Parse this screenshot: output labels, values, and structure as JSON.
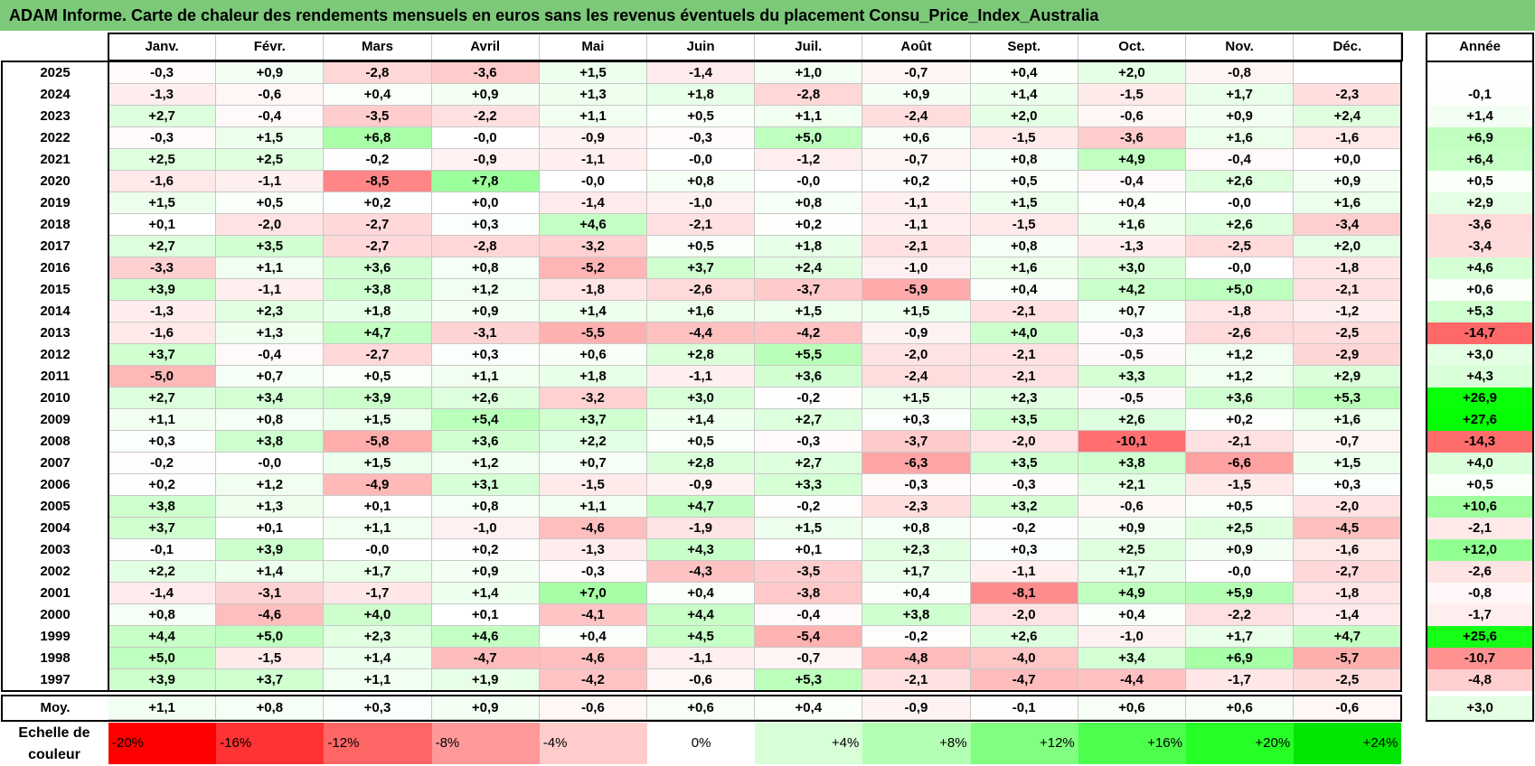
{
  "title": "ADAM Informe. Carte de chaleur des rendements mensuels en euros sans les revenus éventuels du placement Consu_Price_Index_Australia",
  "chart_data": {
    "type": "heatmap",
    "months": [
      "Janv.",
      "Févr.",
      "Mars",
      "Avril",
      "Mai",
      "Juin",
      "Juil.",
      "Août",
      "Sept.",
      "Oct.",
      "Nov.",
      "Déc."
    ],
    "year_header": "Année",
    "rows": [
      {
        "year": "2025",
        "values": [
          "-0,3",
          "+0,9",
          "-2,8",
          "-3,6",
          "+1,5",
          "-1,4",
          "+1,0",
          "-0,7",
          "+0,4",
          "+2,0",
          "-0,8",
          ""
        ],
        "annual": ""
      },
      {
        "year": "2024",
        "values": [
          "-1,3",
          "-0,6",
          "+0,4",
          "+0,9",
          "+1,3",
          "+1,8",
          "-2,8",
          "+0,9",
          "+1,4",
          "-1,5",
          "+1,7",
          "-2,3"
        ],
        "annual": "-0,1"
      },
      {
        "year": "2023",
        "values": [
          "+2,7",
          "-0,4",
          "-3,5",
          "-2,2",
          "+1,1",
          "+0,5",
          "+1,1",
          "-2,4",
          "+2,0",
          "-0,6",
          "+0,9",
          "+2,4"
        ],
        "annual": "+1,4"
      },
      {
        "year": "2022",
        "values": [
          "-0,3",
          "+1,5",
          "+6,8",
          "-0,0",
          "-0,9",
          "-0,3",
          "+5,0",
          "+0,6",
          "-1,5",
          "-3,6",
          "+1,6",
          "-1,6"
        ],
        "annual": "+6,9"
      },
      {
        "year": "2021",
        "values": [
          "+2,5",
          "+2,5",
          "-0,2",
          "-0,9",
          "-1,1",
          "-0,0",
          "-1,2",
          "-0,7",
          "+0,8",
          "+4,9",
          "-0,4",
          "+0,0"
        ],
        "annual": "+6,4"
      },
      {
        "year": "2020",
        "values": [
          "-1,6",
          "-1,1",
          "-8,5",
          "+7,8",
          "-0,0",
          "+0,8",
          "-0,0",
          "+0,2",
          "+0,5",
          "-0,4",
          "+2,6",
          "+0,9"
        ],
        "annual": "+0,5"
      },
      {
        "year": "2019",
        "values": [
          "+1,5",
          "+0,5",
          "+0,2",
          "+0,0",
          "-1,4",
          "-1,0",
          "+0,8",
          "-1,1",
          "+1,5",
          "+0,4",
          "-0,0",
          "+1,6"
        ],
        "annual": "+2,9"
      },
      {
        "year": "2018",
        "values": [
          "+0,1",
          "-2,0",
          "-2,7",
          "+0,3",
          "+4,6",
          "-2,1",
          "+0,2",
          "-1,1",
          "-1,5",
          "+1,6",
          "+2,6",
          "-3,4"
        ],
        "annual": "-3,6"
      },
      {
        "year": "2017",
        "values": [
          "+2,7",
          "+3,5",
          "-2,7",
          "-2,8",
          "-3,2",
          "+0,5",
          "+1,8",
          "-2,1",
          "+0,8",
          "-1,3",
          "-2,5",
          "+2,0"
        ],
        "annual": "-3,4"
      },
      {
        "year": "2016",
        "values": [
          "-3,3",
          "+1,1",
          "+3,6",
          "+0,8",
          "-5,2",
          "+3,7",
          "+2,4",
          "-1,0",
          "+1,6",
          "+3,0",
          "-0,0",
          "-1,8"
        ],
        "annual": "+4,6"
      },
      {
        "year": "2015",
        "values": [
          "+3,9",
          "-1,1",
          "+3,8",
          "+1,2",
          "-1,8",
          "-2,6",
          "-3,7",
          "-5,9",
          "+0,4",
          "+4,2",
          "+5,0",
          "-2,1"
        ],
        "annual": "+0,6"
      },
      {
        "year": "2014",
        "values": [
          "-1,3",
          "+2,3",
          "+1,8",
          "+0,9",
          "+1,4",
          "+1,6",
          "+1,5",
          "+1,5",
          "-2,1",
          "+0,7",
          "-1,8",
          "-1,2"
        ],
        "annual": "+5,3"
      },
      {
        "year": "2013",
        "values": [
          "-1,6",
          "+1,3",
          "+4,7",
          "-3,1",
          "-5,5",
          "-4,4",
          "-4,2",
          "-0,9",
          "+4,0",
          "-0,3",
          "-2,6",
          "-2,5"
        ],
        "annual": "-14,7"
      },
      {
        "year": "2012",
        "values": [
          "+3,7",
          "-0,4",
          "-2,7",
          "+0,3",
          "+0,6",
          "+2,8",
          "+5,5",
          "-2,0",
          "-2,1",
          "-0,5",
          "+1,2",
          "-2,9"
        ],
        "annual": "+3,0"
      },
      {
        "year": "2011",
        "values": [
          "-5,0",
          "+0,7",
          "+0,5",
          "+1,1",
          "+1,8",
          "-1,1",
          "+3,6",
          "-2,4",
          "-2,1",
          "+3,3",
          "+1,2",
          "+2,9"
        ],
        "annual": "+4,3"
      },
      {
        "year": "2010",
        "values": [
          "+2,7",
          "+3,4",
          "+3,9",
          "+2,6",
          "-3,2",
          "+3,0",
          "-0,2",
          "+1,5",
          "+2,3",
          "-0,5",
          "+3,6",
          "+5,3"
        ],
        "annual": "+26,9"
      },
      {
        "year": "2009",
        "values": [
          "+1,1",
          "+0,8",
          "+1,5",
          "+5,4",
          "+3,7",
          "+1,4",
          "+2,7",
          "+0,3",
          "+3,5",
          "+2,6",
          "+0,2",
          "+1,6"
        ],
        "annual": "+27,6"
      },
      {
        "year": "2008",
        "values": [
          "+0,3",
          "+3,8",
          "-5,8",
          "+3,6",
          "+2,2",
          "+0,5",
          "-0,3",
          "-3,7",
          "-2,0",
          "-10,1",
          "-2,1",
          "-0,7"
        ],
        "annual": "-14,3"
      },
      {
        "year": "2007",
        "values": [
          "-0,2",
          "-0,0",
          "+1,5",
          "+1,2",
          "+0,7",
          "+2,8",
          "+2,7",
          "-6,3",
          "+3,5",
          "+3,8",
          "-6,6",
          "+1,5"
        ],
        "annual": "+4,0"
      },
      {
        "year": "2006",
        "values": [
          "+0,2",
          "+1,2",
          "-4,9",
          "+3,1",
          "-1,5",
          "-0,9",
          "+3,3",
          "-0,3",
          "-0,3",
          "+2,1",
          "-1,5",
          "+0,3"
        ],
        "annual": "+0,5"
      },
      {
        "year": "2005",
        "values": [
          "+3,8",
          "+1,3",
          "+0,1",
          "+0,8",
          "+1,1",
          "+4,7",
          "-0,2",
          "-2,3",
          "+3,2",
          "-0,6",
          "+0,5",
          "-2,0"
        ],
        "annual": "+10,6"
      },
      {
        "year": "2004",
        "values": [
          "+3,7",
          "+0,1",
          "+1,1",
          "-1,0",
          "-4,6",
          "-1,9",
          "+1,5",
          "+0,8",
          "-0,2",
          "+0,9",
          "+2,5",
          "-4,5"
        ],
        "annual": "-2,1"
      },
      {
        "year": "2003",
        "values": [
          "-0,1",
          "+3,9",
          "-0,0",
          "+0,2",
          "-1,3",
          "+4,3",
          "+0,1",
          "+2,3",
          "+0,3",
          "+2,5",
          "+0,9",
          "-1,6"
        ],
        "annual": "+12,0"
      },
      {
        "year": "2002",
        "values": [
          "+2,2",
          "+1,4",
          "+1,7",
          "+0,9",
          "-0,3",
          "-4,3",
          "-3,5",
          "+1,7",
          "-1,1",
          "+1,7",
          "-0,0",
          "-2,7"
        ],
        "annual": "-2,6"
      },
      {
        "year": "2001",
        "values": [
          "-1,4",
          "-3,1",
          "-1,7",
          "+1,4",
          "+7,0",
          "+0,4",
          "-3,8",
          "+0,4",
          "-8,1",
          "+4,9",
          "+5,9",
          "-1,8"
        ],
        "annual": "-0,8"
      },
      {
        "year": "2000",
        "values": [
          "+0,8",
          "-4,6",
          "+4,0",
          "+0,1",
          "-4,1",
          "+4,4",
          "-0,4",
          "+3,8",
          "-2,0",
          "+0,4",
          "-2,2",
          "-1,4"
        ],
        "annual": "-1,7"
      },
      {
        "year": "1999",
        "values": [
          "+4,4",
          "+5,0",
          "+2,3",
          "+4,6",
          "+0,4",
          "+4,5",
          "-5,4",
          "-0,2",
          "+2,6",
          "-1,0",
          "+1,7",
          "+4,7"
        ],
        "annual": "+25,6"
      },
      {
        "year": "1998",
        "values": [
          "+5,0",
          "-1,5",
          "+1,4",
          "-4,7",
          "-4,6",
          "-1,1",
          "-0,7",
          "-4,8",
          "-4,0",
          "+3,4",
          "+6,9",
          "-5,7"
        ],
        "annual": "-10,7"
      },
      {
        "year": "1997",
        "values": [
          "+3,9",
          "+3,7",
          "+1,1",
          "+1,9",
          "-4,2",
          "-0,6",
          "+5,3",
          "-2,1",
          "-4,7",
          "-4,4",
          "-1,7",
          "-2,5"
        ],
        "annual": "-4,8"
      }
    ],
    "average": {
      "label": "Moy.",
      "values": [
        "+1,1",
        "+0,8",
        "+0,3",
        "+0,9",
        "-0,6",
        "+0,6",
        "+0,4",
        "-0,9",
        "-0,1",
        "+0,6",
        "+0,6",
        "-0,6"
      ],
      "annual": "+3,0"
    },
    "scale": {
      "label": "Echelle de couleur",
      "steps": [
        {
          "label": "-20%",
          "value": -20,
          "color": "#ff0000"
        },
        {
          "label": "-16%",
          "value": -16,
          "color": "#ff3333"
        },
        {
          "label": "-12%",
          "value": -12,
          "color": "#ff6666"
        },
        {
          "label": "-8%",
          "value": -8,
          "color": "#ff9999"
        },
        {
          "label": "-4%",
          "value": -4,
          "color": "#ffcccc"
        },
        {
          "label": "0%",
          "value": 0,
          "color": "#ffffff"
        },
        {
          "label": "+4%",
          "value": 4,
          "color": "#d9ffd9"
        },
        {
          "label": "+8%",
          "value": 8,
          "color": "#b3ffb3"
        },
        {
          "label": "+12%",
          "value": 12,
          "color": "#80ff80"
        },
        {
          "label": "+16%",
          "value": 16,
          "color": "#4dff4d"
        },
        {
          "label": "+20%",
          "value": 20,
          "color": "#26ff26"
        },
        {
          "label": "+24%",
          "value": 24,
          "color": "#00e600"
        }
      ]
    }
  }
}
